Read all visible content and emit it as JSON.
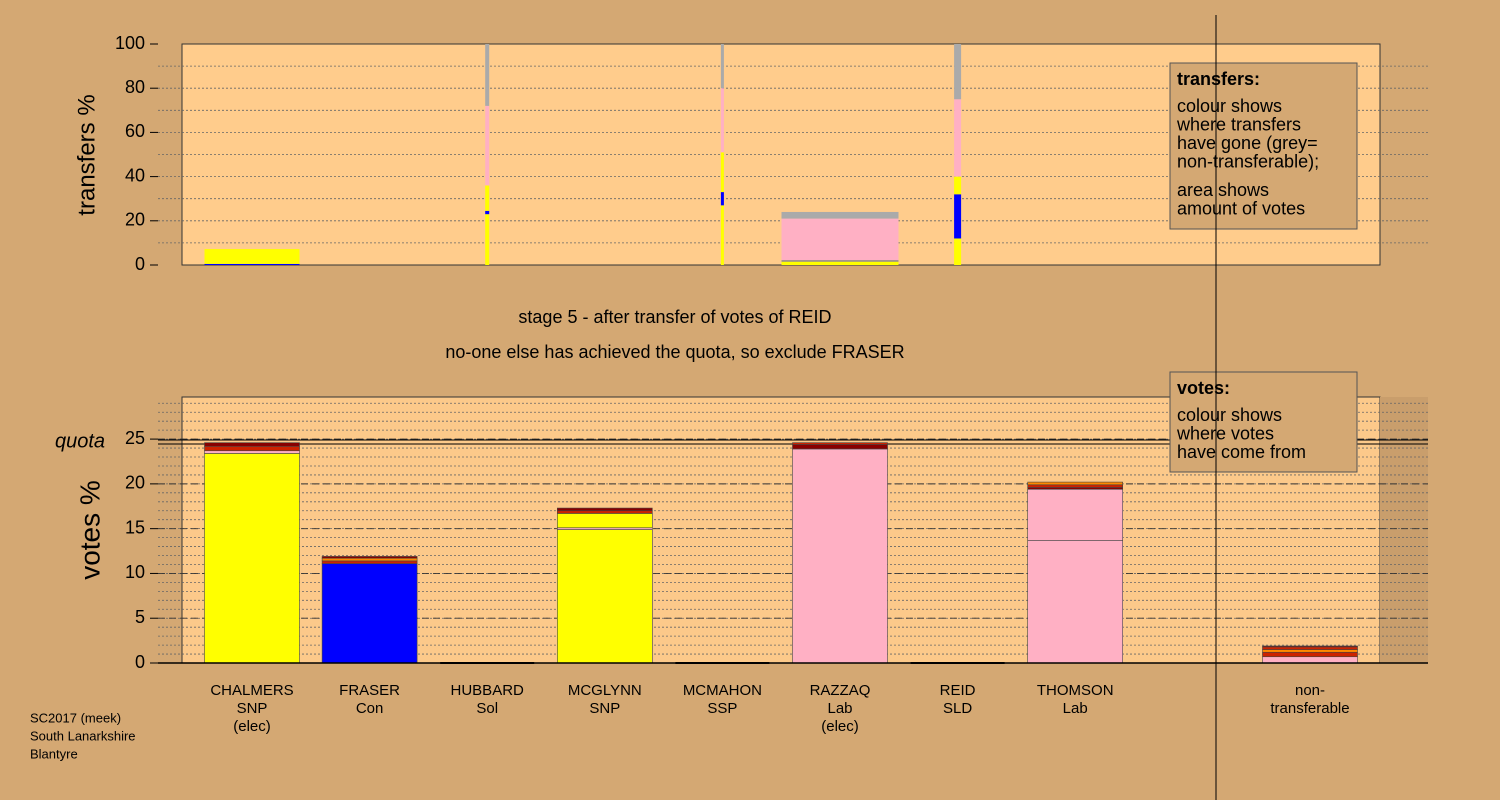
{
  "chart_data": [
    {
      "type": "stacked-bar",
      "ylabel": "transfers %",
      "ylim": [
        0,
        100
      ],
      "yticks": [
        0,
        20,
        40,
        60,
        80,
        100
      ],
      "minor_grid": 10,
      "note_title": "transfers:",
      "note_lines": [
        [
          "colour shows",
          "where transfers",
          "have gone (grey=",
          "non-transferable);"
        ],
        [
          "area shows",
          "amount of votes"
        ]
      ],
      "segments": [
        [
          {
            "color": "#0000ff",
            "value": 0.5
          },
          {
            "color": "#ffff00",
            "value": 6.7
          }
        ],
        [],
        [
          {
            "color": "#ffff00",
            "value": 23
          },
          {
            "color": "#0000ff",
            "value": 1.5
          },
          {
            "color": "#ffff00",
            "value": 11.5
          },
          {
            "color": "#ffb0c4",
            "value": 36
          },
          {
            "color": "#aaaaaa",
            "value": 28
          }
        ],
        [],
        [
          {
            "color": "#ffff00",
            "value": 27
          },
          {
            "color": "#0000ff",
            "value": 6
          },
          {
            "color": "#ffff00",
            "value": 18
          },
          {
            "color": "#ffb0c4",
            "value": 29
          },
          {
            "color": "#aaaaaa",
            "value": 20
          }
        ],
        [
          {
            "color": "#ffff00",
            "value": 1.5
          },
          {
            "color": "#888888",
            "value": 0.7
          },
          {
            "color": "#ffb0c4",
            "value": 18.8
          },
          {
            "color": "#aaaaaa",
            "value": 3
          }
        ],
        [
          {
            "color": "#ffff00",
            "value": 12
          },
          {
            "color": "#0000ff",
            "value": 20
          },
          {
            "color": "#ffff00",
            "value": 8
          },
          {
            "color": "#ffb0c4",
            "value": 35
          },
          {
            "color": "#aaaaaa",
            "value": 25
          }
        ],
        [],
        []
      ]
    },
    {
      "type": "stacked-bar",
      "ylabel": "votes %",
      "ylim": [
        0,
        29.7
      ],
      "yticks": [
        0,
        5,
        10,
        15,
        20,
        25
      ],
      "minor_grid": 1,
      "quota": {
        "label": "quota",
        "value": 24.67
      },
      "note_title": "votes:",
      "note_lines": [
        [
          "colour shows",
          "where votes",
          "have come from"
        ]
      ],
      "categories": [
        [
          "CHALMERS",
          "SNP",
          "(elec)"
        ],
        [
          "FRASER",
          "Con"
        ],
        [
          "HUBBARD",
          "Sol"
        ],
        [
          "MCGLYNN",
          "SNP"
        ],
        [
          "MCMAHON",
          "SSP"
        ],
        [
          "RAZZAQ",
          "Lab",
          "(elec)"
        ],
        [
          "REID",
          "SLD"
        ],
        [
          "THOMSON",
          "Lab"
        ],
        [
          "non-",
          "transferable"
        ]
      ],
      "segments": [
        [
          {
            "color": "#ffff00",
            "value": 23.4
          },
          {
            "color": "#ffb0c4",
            "value": 0.3
          },
          {
            "color": "#cc2200",
            "value": 0.5
          },
          {
            "color": "#880000",
            "value": 0.4
          }
        ],
        [
          {
            "color": "#0000ff",
            "value": 11.1
          },
          {
            "color": "#cc2200",
            "value": 0.3
          },
          {
            "color": "#ff8800",
            "value": 0.3
          },
          {
            "color": "#880000",
            "value": 0.2
          }
        ],
        [],
        [
          {
            "color": "#ffff00",
            "value": 14.9
          },
          {
            "color": "#ffb0c4",
            "value": 0.2
          },
          {
            "color": "#ffff00",
            "value": 1.6
          },
          {
            "color": "#cc2200",
            "value": 0.3
          },
          {
            "color": "#880000",
            "value": 0.3
          }
        ],
        [],
        [
          {
            "color": "#ffb0c4",
            "value": 23.9
          },
          {
            "color": "#880000",
            "value": 0.5
          },
          {
            "color": "#cc2200",
            "value": 0.2
          }
        ],
        [],
        [
          {
            "color": "#ffb0c4",
            "value": 13.7
          },
          {
            "color": "#ffb0c4",
            "value": 5.7
          },
          {
            "color": "#880000",
            "value": 0.2
          },
          {
            "color": "#cc2200",
            "value": 0.3
          },
          {
            "color": "#ff8800",
            "value": 0.3
          }
        ],
        [
          {
            "color": "#ffb0c4",
            "value": 0.7
          },
          {
            "color": "#cc2200",
            "value": 0.5
          },
          {
            "color": "#ff8800",
            "value": 0.3
          },
          {
            "color": "#cc2200",
            "value": 0.3
          },
          {
            "color": "#880000",
            "value": 0.1
          }
        ]
      ]
    }
  ],
  "messages": [
    "stage 5 - after transfer of votes of REID",
    "no-one else has achieved the quota, so exclude FRASER"
  ],
  "footer": [
    "SC2017 (meek)",
    "South Lanarkshire",
    "Blantyre"
  ]
}
